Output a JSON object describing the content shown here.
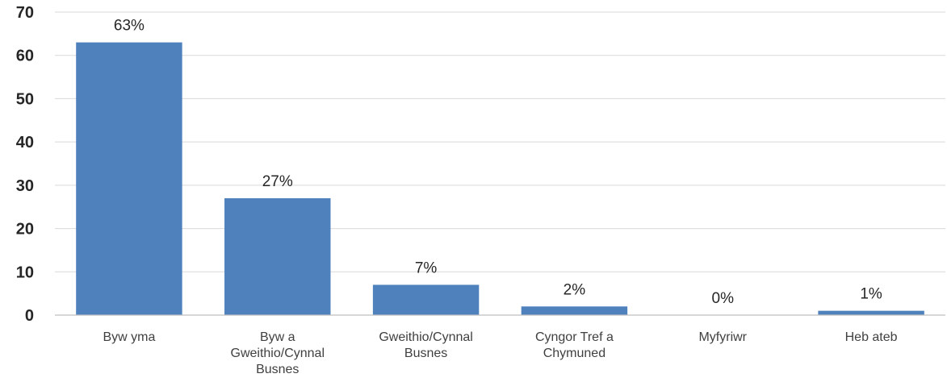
{
  "chart_data": {
    "type": "bar",
    "title": "",
    "xlabel": "",
    "ylabel": "",
    "ylim": [
      0,
      70
    ],
    "yticks": [
      "0",
      "10",
      "20",
      "30",
      "40",
      "50",
      "60",
      "70"
    ],
    "grid": true,
    "legend": "none",
    "bar_color": "#4f81bd",
    "categories": [
      [
        "Byw yma"
      ],
      [
        "Byw a",
        "Gweithio/Cynnal",
        "Busnes"
      ],
      [
        "Gweithio/Cynnal",
        "Busnes"
      ],
      [
        "Cyngor Tref a",
        "Chymuned"
      ],
      [
        "Myfyriwr"
      ],
      [
        "Heb ateb"
      ]
    ],
    "values": [
      63,
      27,
      7,
      2,
      0,
      1
    ],
    "data_labels": [
      "63%",
      "27%",
      "7%",
      "2%",
      "0%",
      "1%"
    ]
  }
}
